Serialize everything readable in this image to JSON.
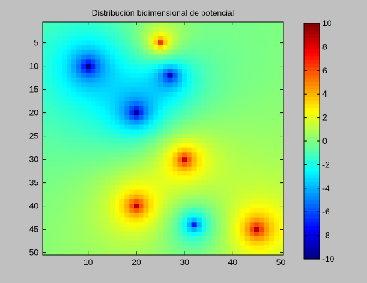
{
  "chart_data": {
    "type": "heatmap",
    "title": "Distribución bidimensional de potencial",
    "xlabel": "",
    "ylabel": "",
    "xlim": [
      0.5,
      50.5
    ],
    "ylim": [
      0.5,
      50.5
    ],
    "x_ticks": [
      "10",
      "20",
      "30",
      "40",
      "50"
    ],
    "y_ticks": [
      "5",
      "10",
      "15",
      "20",
      "25",
      "30",
      "35",
      "40",
      "45",
      "50"
    ],
    "x_tick_values": [
      10,
      20,
      30,
      40,
      50
    ],
    "y_tick_values": [
      5,
      10,
      15,
      20,
      25,
      30,
      35,
      40,
      45,
      50
    ],
    "grid": false,
    "colormap": "jet",
    "colorbar": {
      "range": [
        -10,
        10
      ],
      "ticks": [
        "10",
        "8",
        "6",
        "4",
        "2",
        "0",
        "-2",
        "-4",
        "-6",
        "-8",
        "-10"
      ],
      "tick_values": [
        10,
        8,
        6,
        4,
        2,
        0,
        -2,
        -4,
        -6,
        -8,
        -10
      ]
    },
    "grid_size": [
      50,
      50
    ],
    "charges": [
      {
        "x": 25,
        "y": 5,
        "value": 10
      },
      {
        "x": 10,
        "y": 10,
        "value": -10
      },
      {
        "x": 27,
        "y": 12,
        "value": -10
      },
      {
        "x": 20,
        "y": 20,
        "value": -10
      },
      {
        "x": 30,
        "y": 30,
        "value": 10
      },
      {
        "x": 20,
        "y": 40,
        "value": 10
      },
      {
        "x": 32,
        "y": 44,
        "value": -10
      },
      {
        "x": 45,
        "y": 45,
        "value": 10
      }
    ]
  }
}
